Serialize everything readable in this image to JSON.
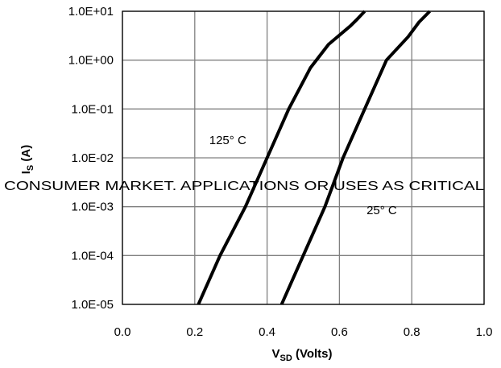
{
  "chart_data": {
    "type": "line",
    "title": "",
    "xlabel": {
      "main": "V",
      "sub": "SD",
      "suffix": " (Volts)"
    },
    "ylabel": {
      "main": "I",
      "sub": "S",
      "suffix": " (A)"
    },
    "xlim": [
      0.0,
      1.0
    ],
    "ylim": [
      1e-05,
      10
    ],
    "yscale": "log",
    "grid": true,
    "x_ticks": [
      "0.0",
      "0.2",
      "0.4",
      "0.6",
      "0.8",
      "1.0"
    ],
    "y_ticks": [
      "1.0E-05",
      "1.0E-04",
      "1.0E-03",
      "1.0E-02",
      "1.0E-01",
      "1.0E+00",
      "1.0E+01"
    ],
    "series": [
      {
        "color": "#000000",
        "points": [
          [
            0.21,
            1e-05
          ],
          [
            0.27,
            0.0001
          ],
          [
            0.34,
            0.001
          ],
          [
            0.4,
            0.01
          ],
          [
            0.46,
            0.1
          ],
          [
            0.52,
            0.7
          ],
          [
            0.57,
            2.1
          ],
          [
            0.63,
            5.0
          ],
          [
            0.65,
            7.0
          ],
          [
            0.67,
            10.0
          ]
        ]
      },
      {
        "color": "#000000",
        "points": [
          [
            0.44,
            1e-05
          ],
          [
            0.5,
            0.0001
          ],
          [
            0.56,
            0.001
          ],
          [
            0.61,
            0.01
          ],
          [
            0.67,
            0.1
          ],
          [
            0.73,
            1.0
          ],
          [
            0.79,
            3.0
          ],
          [
            0.82,
            6.0
          ],
          [
            0.85,
            10.0
          ]
        ]
      }
    ],
    "annotations": [
      {
        "text": "125° C",
        "x": 0.24,
        "y": 0.023
      },
      {
        "text": "25° C",
        "x": 0.675,
        "y": 0.00085
      }
    ]
  },
  "overlay_text": "CONSUMER MARKET. APPLICATIONS OR USES AS CRITICAL"
}
